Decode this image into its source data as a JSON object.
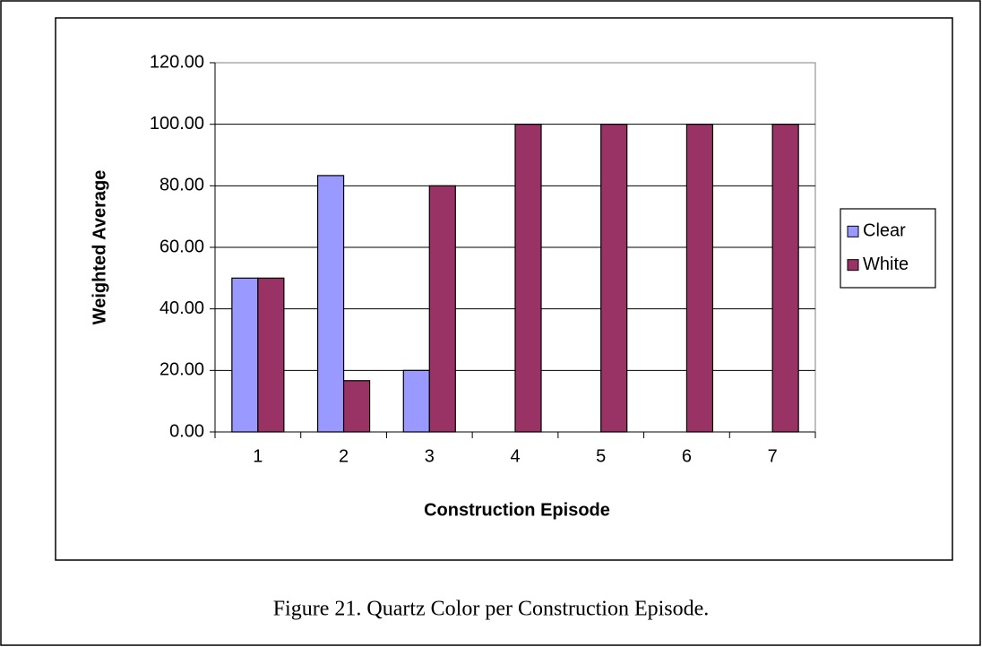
{
  "chart_data": {
    "type": "bar",
    "caption": "Figure 21. Quartz Color per Construction Episode.",
    "xlabel": "Construction Episode",
    "ylabel": "Weighted Average",
    "categories": [
      "1",
      "2",
      "3",
      "4",
      "5",
      "6",
      "7"
    ],
    "series": [
      {
        "name": "Clear",
        "color": "#9999ff",
        "values": [
          50,
          83.33,
          20,
          0,
          0,
          0,
          0
        ]
      },
      {
        "name": "White",
        "color": "#993366",
        "values": [
          50,
          16.67,
          80,
          100,
          100,
          100,
          100
        ]
      }
    ],
    "ylim": [
      0,
      120
    ],
    "yticks": [
      {
        "value": 0,
        "label": "0.00"
      },
      {
        "value": 20,
        "label": "20.00"
      },
      {
        "value": 40,
        "label": "40.00"
      },
      {
        "value": 60,
        "label": "60.00"
      },
      {
        "value": 80,
        "label": "80.00"
      },
      {
        "value": 100,
        "label": "100.00"
      },
      {
        "value": 120,
        "label": "120.00"
      }
    ],
    "grid": true,
    "legend": "right"
  }
}
